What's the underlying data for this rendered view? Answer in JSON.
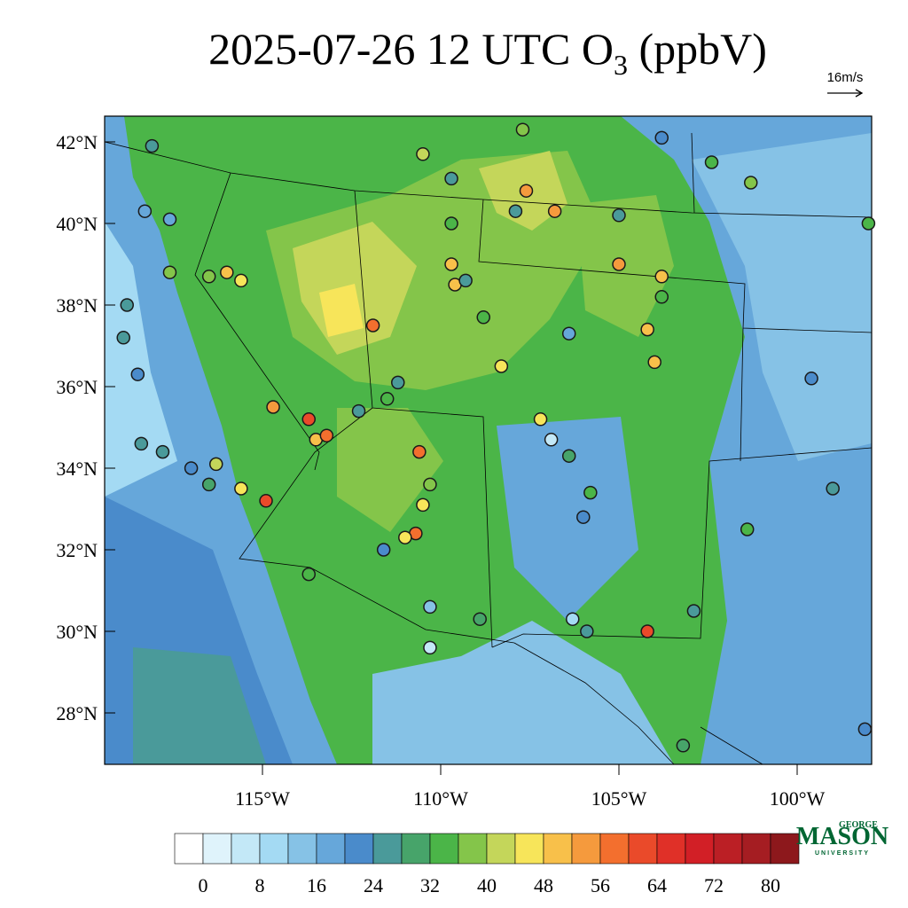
{
  "title": {
    "main": "2025-07-26 12 UTC O",
    "sub": "3",
    "rest": " (ppbV)"
  },
  "wind_reference": "16m/s",
  "map": {
    "lat_ticks": [
      {
        "value": 42,
        "label": "42°N"
      },
      {
        "value": 40,
        "label": "40°N"
      },
      {
        "value": 38,
        "label": "38°N"
      },
      {
        "value": 36,
        "label": "36°N"
      },
      {
        "value": 34,
        "label": "34°N"
      },
      {
        "value": 32,
        "label": "32°N"
      },
      {
        "value": 30,
        "label": "30°N"
      },
      {
        "value": 28,
        "label": "28°N"
      }
    ],
    "lon_ticks": [
      {
        "value": -115,
        "label": "115°W"
      },
      {
        "value": -110,
        "label": "110°W"
      },
      {
        "value": -105,
        "label": "105°W"
      },
      {
        "value": -100,
        "label": "100°W"
      }
    ],
    "stations": [
      {
        "lon": -118.1,
        "lat": 41.9,
        "value": 24
      },
      {
        "lon": -118.3,
        "lat": 40.3,
        "value": 18
      },
      {
        "lon": -117.6,
        "lat": 40.1,
        "value": 16
      },
      {
        "lon": -117.6,
        "lat": 38.8,
        "value": 36
      },
      {
        "lon": -116.5,
        "lat": 38.7,
        "value": 38
      },
      {
        "lon": -116.0,
        "lat": 38.8,
        "value": 48
      },
      {
        "lon": -115.6,
        "lat": 38.6,
        "value": 46
      },
      {
        "lon": -118.8,
        "lat": 38.0,
        "value": 24
      },
      {
        "lon": -118.9,
        "lat": 37.2,
        "value": 24
      },
      {
        "lon": -118.5,
        "lat": 36.3,
        "value": 22
      },
      {
        "lon": -118.4,
        "lat": 34.6,
        "value": 24
      },
      {
        "lon": -117.8,
        "lat": 34.4,
        "value": 26
      },
      {
        "lon": -117.0,
        "lat": 34.0,
        "value": 20
      },
      {
        "lon": -116.5,
        "lat": 33.6,
        "value": 30
      },
      {
        "lon": -116.3,
        "lat": 34.1,
        "value": 42
      },
      {
        "lon": -115.6,
        "lat": 33.5,
        "value": 46
      },
      {
        "lon": -114.9,
        "lat": 33.2,
        "value": 60
      },
      {
        "lon": -114.7,
        "lat": 35.5,
        "value": 52
      },
      {
        "lon": -113.7,
        "lat": 35.2,
        "value": 62
      },
      {
        "lon": -113.5,
        "lat": 34.7,
        "value": 50
      },
      {
        "lon": -113.2,
        "lat": 34.8,
        "value": 56
      },
      {
        "lon": -113.7,
        "lat": 31.4,
        "value": 34
      },
      {
        "lon": -112.3,
        "lat": 35.4,
        "value": 24
      },
      {
        "lon": -111.9,
        "lat": 37.5,
        "value": 58
      },
      {
        "lon": -111.5,
        "lat": 35.7,
        "value": 32
      },
      {
        "lon": -111.2,
        "lat": 36.1,
        "value": 26
      },
      {
        "lon": -110.6,
        "lat": 34.4,
        "value": 58
      },
      {
        "lon": -110.3,
        "lat": 33.6,
        "value": 36
      },
      {
        "lon": -110.5,
        "lat": 33.1,
        "value": 44
      },
      {
        "lon": -110.7,
        "lat": 32.4,
        "value": 56
      },
      {
        "lon": -111.0,
        "lat": 32.3,
        "value": 44
      },
      {
        "lon": -111.6,
        "lat": 32.0,
        "value": 20
      },
      {
        "lon": -110.3,
        "lat": 30.6,
        "value": 14
      },
      {
        "lon": -110.3,
        "lat": 29.6,
        "value": 4
      },
      {
        "lon": -108.9,
        "lat": 30.3,
        "value": 30
      },
      {
        "lon": -110.5,
        "lat": 41.7,
        "value": 40
      },
      {
        "lon": -109.7,
        "lat": 41.1,
        "value": 24
      },
      {
        "lon": -109.7,
        "lat": 40.0,
        "value": 32
      },
      {
        "lon": -109.7,
        "lat": 39.0,
        "value": 50
      },
      {
        "lon": -109.6,
        "lat": 38.5,
        "value": 48
      },
      {
        "lon": -109.3,
        "lat": 38.6,
        "value": 24
      },
      {
        "lon": -108.8,
        "lat": 37.7,
        "value": 32
      },
      {
        "lon": -108.3,
        "lat": 36.5,
        "value": 46
      },
      {
        "lon": -107.7,
        "lat": 42.3,
        "value": 36
      },
      {
        "lon": -107.9,
        "lat": 40.3,
        "value": 24
      },
      {
        "lon": -107.6,
        "lat": 40.8,
        "value": 52
      },
      {
        "lon": -106.8,
        "lat": 40.3,
        "value": 54
      },
      {
        "lon": -107.2,
        "lat": 35.2,
        "value": 46
      },
      {
        "lon": -106.9,
        "lat": 34.7,
        "value": 4
      },
      {
        "lon": -106.4,
        "lat": 34.3,
        "value": 28
      },
      {
        "lon": -105.8,
        "lat": 33.4,
        "value": 32
      },
      {
        "lon": -106.0,
        "lat": 32.8,
        "value": 20
      },
      {
        "lon": -106.3,
        "lat": 30.3,
        "value": 10
      },
      {
        "lon": -105.9,
        "lat": 30.0,
        "value": 24
      },
      {
        "lon": -106.4,
        "lat": 37.3,
        "value": 18
      },
      {
        "lon": -105.0,
        "lat": 40.2,
        "value": 24
      },
      {
        "lon": -105.0,
        "lat": 39.0,
        "value": 55
      },
      {
        "lon": -103.8,
        "lat": 42.1,
        "value": 22
      },
      {
        "lon": -103.8,
        "lat": 38.7,
        "value": 48
      },
      {
        "lon": -103.8,
        "lat": 38.2,
        "value": 32
      },
      {
        "lon": -104.2,
        "lat": 37.4,
        "value": 50
      },
      {
        "lon": -104.0,
        "lat": 36.6,
        "value": 48
      },
      {
        "lon": -104.2,
        "lat": 30.0,
        "value": 62
      },
      {
        "lon": -102.9,
        "lat": 30.5,
        "value": 24
      },
      {
        "lon": -103.2,
        "lat": 27.2,
        "value": 30
      },
      {
        "lon": -102.4,
        "lat": 41.5,
        "value": 34
      },
      {
        "lon": -101.3,
        "lat": 41.0,
        "value": 36
      },
      {
        "lon": -101.4,
        "lat": 32.5,
        "value": 34
      },
      {
        "lon": -99.6,
        "lat": 36.2,
        "value": 22
      },
      {
        "lon": -99.0,
        "lat": 33.5,
        "value": 24
      },
      {
        "lon": -98.0,
        "lat": 40.0,
        "value": 34
      },
      {
        "lon": -98.1,
        "lat": 27.6,
        "value": 20
      }
    ]
  },
  "colorbar": {
    "ticks": [
      0,
      8,
      16,
      24,
      32,
      40,
      48,
      56,
      64,
      72,
      80
    ],
    "colors": [
      "#ffffff",
      "#dff3fb",
      "#c3e8f7",
      "#a4daf3",
      "#86c2e6",
      "#66a7da",
      "#4a8bcb",
      "#4a9a9a",
      "#47a46a",
      "#4bb548",
      "#84c54a",
      "#c4d65a",
      "#f7e55a",
      "#f8c04a",
      "#f59a3d",
      "#f36f2e",
      "#ea4a2a",
      "#e03028",
      "#d21f26",
      "#bb1f25",
      "#a51d22",
      "#8d181c"
    ]
  },
  "logo": {
    "top": "GEORGE",
    "name": "MASON",
    "bottom": "UNIVERSITY"
  }
}
